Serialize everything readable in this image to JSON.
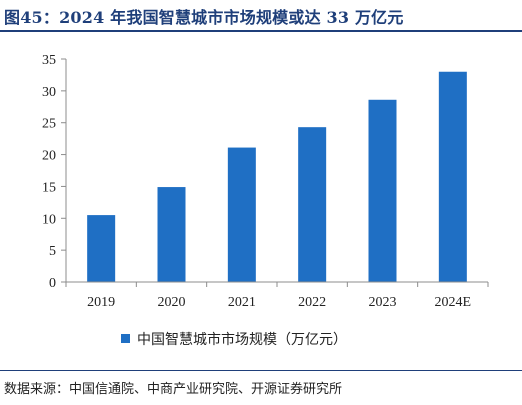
{
  "header": {
    "title": "图45：2024 年我国智慧城市市场规模或达 33 万亿元"
  },
  "footer": {
    "source": "数据来源：中国信通院、中商产业研究院、开源证券研究所"
  },
  "colors": {
    "bar": "#1f6fc4",
    "title": "#1f3f7a",
    "axis": "#8c8c8c"
  },
  "chart_data": {
    "type": "bar",
    "categories": [
      "2019",
      "2020",
      "2021",
      "2022",
      "2023",
      "2024E"
    ],
    "series": [
      {
        "name": "中国智慧城市市场规模（万亿元）",
        "values": [
          10.5,
          14.9,
          21.1,
          24.3,
          28.6,
          33.0
        ]
      }
    ],
    "yticks": [
      "0",
      "5",
      "10",
      "15",
      "20",
      "25",
      "30",
      "35"
    ],
    "ylim": [
      0,
      35
    ],
    "grid": false,
    "legend_position": "bottom-center"
  }
}
